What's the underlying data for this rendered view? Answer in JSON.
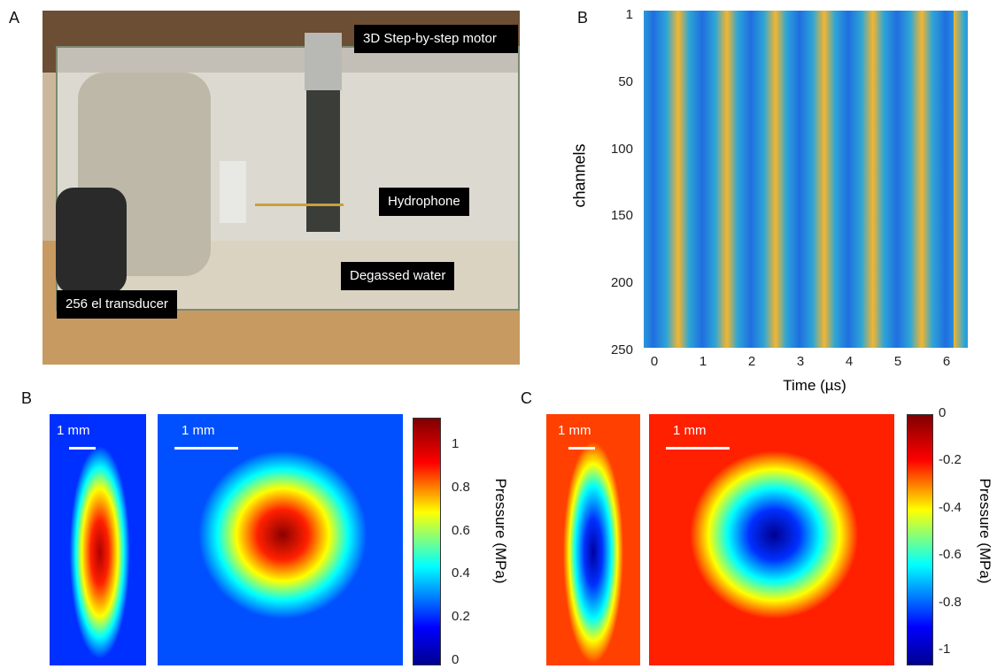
{
  "panels": {
    "a": {
      "label": "A",
      "annotations": [
        "3D Step-by-step motor",
        "Hydrophone",
        "Degassed water",
        "256 el transducer"
      ]
    },
    "b_top": {
      "label": "B",
      "y_label": "channels",
      "x_label": "Time (µs)",
      "y_ticks": [
        "1",
        "50",
        "100",
        "150",
        "200",
        "250"
      ],
      "x_ticks": [
        "0",
        "1",
        "2",
        "3",
        "4",
        "5",
        "6"
      ]
    },
    "b_bottom": {
      "label": "B",
      "scale_labels": [
        "1 mm",
        "1 mm"
      ],
      "colorbar_label": "Pressure (MPa)",
      "colorbar_ticks": [
        "1",
        "0.8",
        "0.6",
        "0.4",
        "0.2",
        "0"
      ]
    },
    "c": {
      "label": "C",
      "scale_labels": [
        "1 mm",
        "1 mm"
      ],
      "colorbar_label": "Pressure (MPa)",
      "colorbar_ticks": [
        "0",
        "-0.2",
        "-0.4",
        "-0.6",
        "-0.8",
        "-1"
      ]
    }
  }
}
